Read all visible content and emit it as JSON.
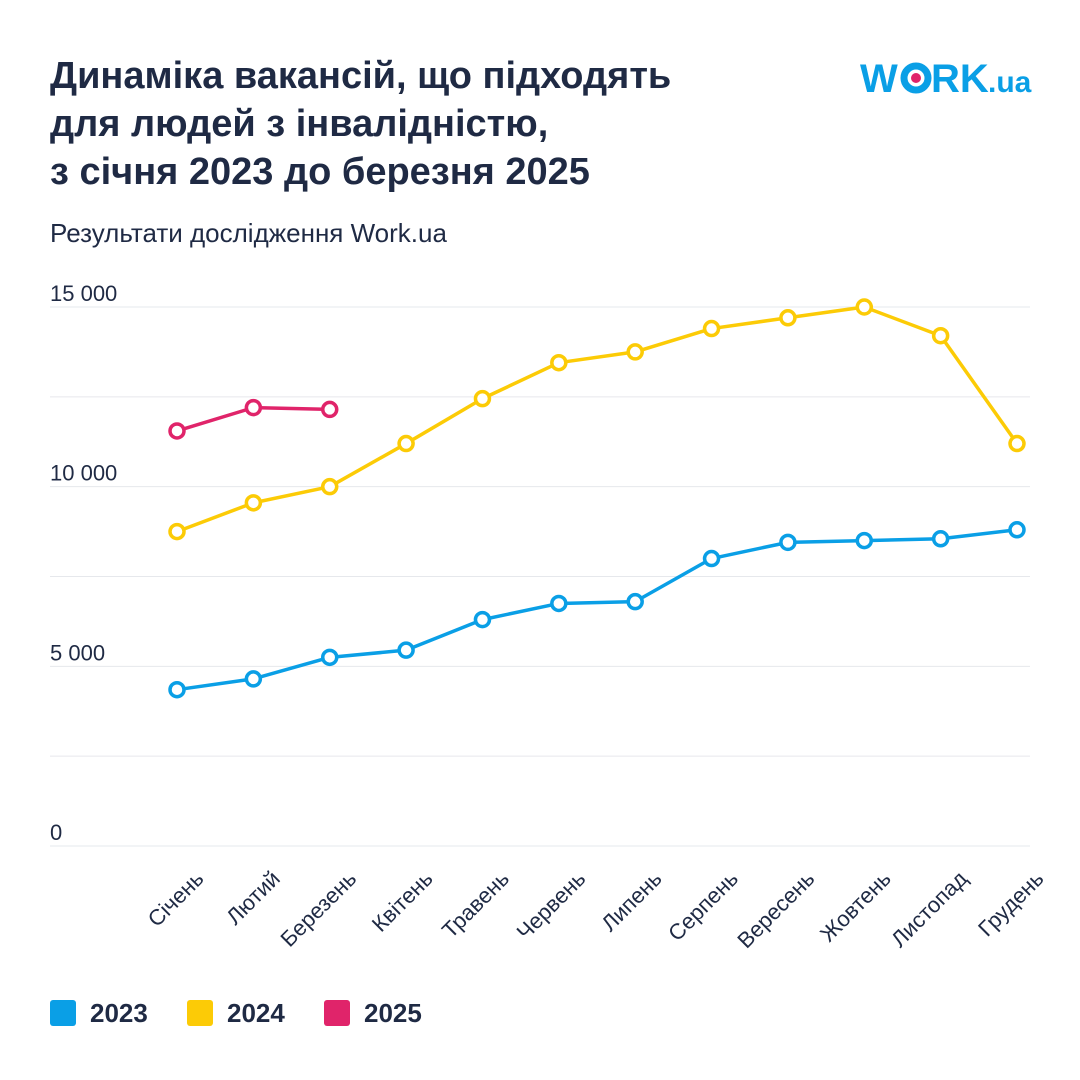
{
  "chart_data": {
    "type": "line",
    "title": [
      "Динаміка вакансій, що підходять",
      "для людей з інвалідністю,",
      "з січня 2023 до березня 2025"
    ],
    "subtitle": "Результати дослідження Work.ua",
    "logo": [
      "W",
      "RK",
      ".ua"
    ],
    "categories": [
      "Січень",
      "Лютий",
      "Березень",
      "Квітень",
      "Травень",
      "Червень",
      "Липень",
      "Серпень",
      "Вересень",
      "Жовтень",
      "Листопад",
      "Грудень"
    ],
    "series": [
      {
        "name": "2023",
        "color": "#0a9fe6",
        "values": [
          4350,
          4650,
          5250,
          5450,
          6300,
          6750,
          6800,
          8000,
          8450,
          8500,
          8550,
          8800
        ]
      },
      {
        "name": "2024",
        "color": "#fccb06",
        "values": [
          8750,
          9550,
          10000,
          11200,
          12450,
          13450,
          13750,
          14400,
          14700,
          15000,
          14200,
          11200
        ]
      },
      {
        "name": "2025",
        "color": "#e0246a",
        "values": [
          11550,
          12200,
          12150,
          null,
          null,
          null,
          null,
          null,
          null,
          null,
          null,
          null
        ]
      }
    ],
    "ylim": [
      0,
      15000
    ],
    "yticks": [
      0,
      {
        "value": 5000,
        "label": "5 000"
      },
      {
        "value": 10000,
        "label": "10 000"
      },
      {
        "value": 15000,
        "label": "15 000"
      }
    ],
    "minor_yticks": [
      2500,
      7500,
      12500
    ],
    "grid": true,
    "legend": "bottom-left"
  }
}
